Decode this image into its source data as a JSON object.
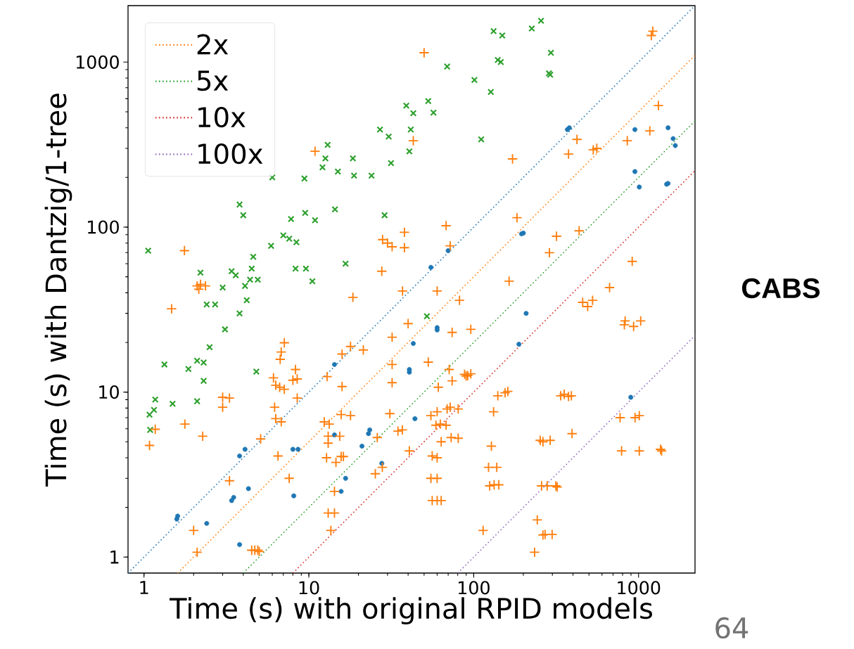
{
  "chart_data": {
    "type": "scatter",
    "xlabel": "Time (s) with original RPID models",
    "ylabel": "Time (s) with Dantzig/1-tree",
    "log": "xy",
    "xlim": [
      0.8,
      2200
    ],
    "ylim": [
      0.8,
      2200
    ],
    "xticks": [
      1,
      10,
      100,
      1000
    ],
    "yticks": [
      1,
      10,
      100,
      1000
    ],
    "legend": "top left",
    "annotations": [
      "CABS",
      "64"
    ],
    "series": [
      {
        "type": "line",
        "color": "#1f77b4",
        "line_style": "dotted",
        "marker": "none",
        "x": [
          0.8,
          2200
        ],
        "values": [
          0.8,
          2200
        ]
      },
      {
        "type": "line",
        "name": "2x",
        "color": "#ff7f0e",
        "line_style": "dotted",
        "marker": "none",
        "x": [
          1.6,
          2200
        ],
        "values": [
          0.8,
          1100
        ]
      },
      {
        "type": "line",
        "name": "5x",
        "color": "#2ca02c",
        "line_style": "dotted",
        "marker": "none",
        "x": [
          4,
          2200
        ],
        "values": [
          0.8,
          440
        ]
      },
      {
        "type": "line",
        "name": "10x",
        "color": "#d62728",
        "line_style": "dotted",
        "marker": "none",
        "x": [
          8,
          2200
        ],
        "values": [
          0.8,
          220
        ]
      },
      {
        "type": "line",
        "name": "100x",
        "color": "#9467bd",
        "line_style": "dotted",
        "marker": "none",
        "x": [
          80,
          2200
        ],
        "values": [
          0.8,
          22
        ]
      },
      {
        "color": "#2ca02c",
        "marker": "cross",
        "x": [
          1.06,
          4.6,
          5.9,
          7.0,
          7.6,
          8.4,
          2.2,
          3.4,
          3.6,
          4.5,
          4.4,
          4.9,
          8.3,
          9.6,
          10.5,
          3.0,
          4.1,
          6.0,
          9.4,
          3.8,
          4.0,
          7.8,
          9.5,
          10.9,
          13,
          12.6,
          12.1,
          15,
          18.5,
          18.8,
          24,
          14.4,
          132,
          149,
          140,
          146,
          69,
          101,
          127,
          39,
          43,
          53,
          57,
          27,
          30.5,
          41.5,
          40.7,
          31.5,
          111,
          28.8,
          16.7,
          225,
          256,
          294,
          291,
          286,
          2.4,
          2.7,
          4.2,
          3.8,
          3.1,
          2.5,
          1.33,
          1.86,
          2.1,
          2.3,
          2.3,
          4.8,
          1.17,
          1.49,
          2.1,
          1.15,
          1.08,
          1.09,
          52
        ],
        "values": [
          72,
          66,
          77,
          89,
          85,
          81,
          53,
          54,
          51,
          56,
          48,
          48,
          56,
          56,
          47,
          43,
          44,
          200,
          197,
          137,
          118,
          112,
          122,
          110,
          315,
          261,
          230,
          217,
          261,
          205,
          205,
          128,
          1540,
          1450,
          1030,
          1000,
          940,
          780,
          660,
          545,
          490,
          580,
          494,
          390,
          354,
          390,
          288,
          244,
          340,
          118,
          60,
          1600,
          1780,
          1140,
          838,
          855,
          34,
          34,
          36,
          30,
          24,
          18.7,
          14.7,
          13.8,
          15.5,
          15.1,
          11.7,
          13.3,
          9.0,
          8.5,
          8.8,
          7.8,
          7.3,
          5.9,
          28.8
        ]
      },
      {
        "color": "#1f77b4",
        "marker": "circle",
        "x": [
          55,
          70,
          380,
          370,
          950,
          1510,
          1620,
          1670,
          950,
          1010,
          1510,
          1480,
          200,
          195,
          208,
          188,
          897,
          60,
          60,
          43,
          40.7,
          40.7,
          14.3,
          44,
          14.3,
          23.4,
          23,
          21,
          27.7,
          16.7,
          15.7,
          4.1,
          3.8,
          8.0,
          8.6,
          4.3,
          3.5,
          3.4,
          8.1,
          1.6,
          1.58,
          2.4,
          3.8
        ],
        "values": [
          57,
          72,
          400,
          390,
          390,
          400,
          344,
          312,
          217,
          175,
          184,
          182,
          92,
          91,
          30,
          19.5,
          9.3,
          24.6,
          23.8,
          19.7,
          13.7,
          13.2,
          14.7,
          6.9,
          5.5,
          5.9,
          5.6,
          4.7,
          3.7,
          3.0,
          2.5,
          4.5,
          4.1,
          4.5,
          4.5,
          2.6,
          2.3,
          2.2,
          2.35,
          1.77,
          1.7,
          1.6,
          1.19
        ]
      },
      {
        "color": "#ff7f0e",
        "marker": "plus",
        "x": [
          1.76,
          2.1,
          2.15,
          2.2,
          2.36,
          10.9,
          50,
          43,
          68,
          38,
          28,
          30,
          32,
          38,
          72,
          27.7,
          164,
          1220,
          1195,
          1320,
          1170,
          854,
          423,
          558,
          531,
          376,
          172,
          183,
          436,
          318,
          288,
          915,
          667,
          458,
          491,
          526,
          829,
          820,
          933,
          1030,
          337,
          354,
          376,
          391,
          773,
          952,
          1010,
          395,
          253,
          263,
          291,
          789,
          1010,
          1358,
          1380,
          258,
          279,
          315,
          321,
          243,
          263,
          271,
          299,
          234,
          18.5,
          37,
          60,
          82,
          40,
          32,
          74,
          96,
          17.9,
          15.9,
          21.4,
          53,
          32,
          32,
          15.9,
          12.9,
          71,
          74,
          61,
          88,
          92,
          96,
          90,
          140,
          161,
          155,
          132,
          31,
          15.7,
          17.9,
          12.4,
          13.3,
          13.1,
          15.4,
          13.1,
          34.7,
          36.9,
          55,
          60,
          69,
          72,
          80.5,
          59,
          62.7,
          68,
          63.5,
          73,
          80.5,
          40.7,
          12.8,
          14.6,
          15.7,
          16.2,
          27.9,
          25.3,
          56,
          60,
          55,
          60,
          56,
          60,
          63.5,
          14.3,
          13.1,
          14.3,
          13.6,
          123,
          138,
          128,
          125,
          133,
          142,
          114,
          26,
          1.47,
          7.1,
          6.8,
          6.7,
          8.3,
          6.1,
          6.3,
          6.65,
          7.1,
          8.0,
          8.5,
          8.5,
          3.0,
          3.3,
          3.0,
          6.2,
          6.3,
          6.8,
          5.1,
          1.77,
          1.17,
          2.27,
          1.08,
          6.5,
          3.3,
          7.6,
          2.0,
          2.1,
          4.5,
          4.7,
          4.9,
          5.0
        ],
        "values": [
          72,
          44,
          42,
          45,
          44,
          288,
          1140,
          334,
          102,
          93,
          84,
          80,
          76,
          75,
          77,
          54,
          47,
          1540,
          1450,
          545,
          383,
          334,
          340,
          300,
          294,
          277,
          259,
          114,
          95,
          88,
          70,
          62,
          43,
          35,
          33,
          36,
          27,
          25.6,
          25,
          27,
          9.5,
          9.7,
          9.4,
          9.5,
          7.0,
          7.0,
          7.2,
          5.6,
          5.1,
          5.0,
          5.1,
          4.4,
          4.4,
          4.5,
          4.4,
          2.7,
          2.7,
          2.7,
          2.66,
          1.68,
          1.36,
          1.37,
          1.37,
          1.07,
          37.5,
          41,
          41,
          36,
          26,
          21.5,
          23,
          24,
          18.9,
          17,
          18,
          15.2,
          14.7,
          11.4,
          10.8,
          12.4,
          13.7,
          11.7,
          10.7,
          12.8,
          12.6,
          12.9,
          12.5,
          9.5,
          10.1,
          9.9,
          7.6,
          7.4,
          7.3,
          7.2,
          6.6,
          6.4,
          5.4,
          5.4,
          4.9,
          5.8,
          5.9,
          7.2,
          7.6,
          7.9,
          8.1,
          7.9,
          6.3,
          6.4,
          6.3,
          5.0,
          5.3,
          5.25,
          4.4,
          4.0,
          3.75,
          4.07,
          4.07,
          3.5,
          3.2,
          4.1,
          4.0,
          3.0,
          3.0,
          2.2,
          2.2,
          2.2,
          2.5,
          1.85,
          1.85,
          1.45,
          3.5,
          3.5,
          4.7,
          2.7,
          2.74,
          2.74,
          1.45,
          5.3,
          32,
          19.9,
          17.5,
          15.8,
          13.7,
          12.2,
          11.0,
          10.7,
          10.4,
          11.8,
          12,
          9.2,
          9.3,
          9.2,
          8.1,
          8.1,
          6.9,
          6.6,
          5.2,
          6.4,
          5.95,
          5.4,
          4.75,
          4.1,
          2.9,
          3.0,
          1.45,
          1.07,
          1.1,
          1.1,
          1.1,
          1.08
        ]
      }
    ]
  }
}
